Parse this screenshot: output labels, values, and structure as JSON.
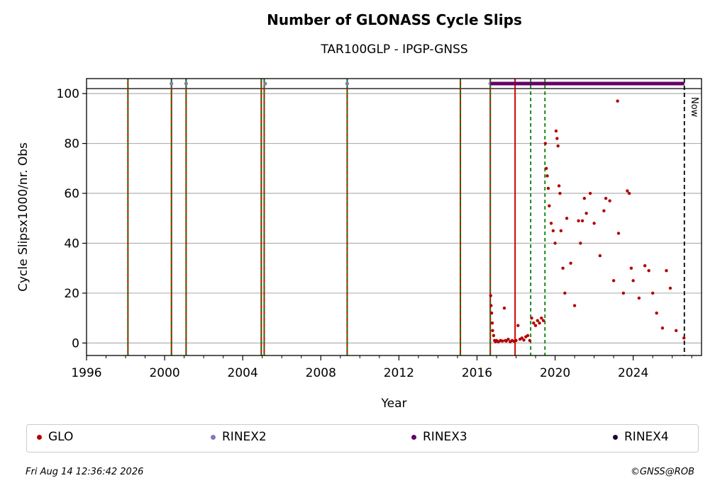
{
  "chart_data": {
    "type": "scatter",
    "title": "Number of GLONASS Cycle Slips",
    "subtitle": "TAR100GLP - IPGP-GNSS",
    "xlabel": "Year",
    "ylabel": "Cycle Slipsx1000/nr. Obs",
    "xlim": [
      1996.0,
      2027.5
    ],
    "ylim": [
      -5,
      106
    ],
    "xticks": [
      1996,
      2000,
      2004,
      2008,
      2012,
      2016,
      2020,
      2024
    ],
    "yticks": [
      0,
      20,
      40,
      60,
      80,
      100
    ],
    "grid": "horizontal",
    "now_label": "Now",
    "now_x": 2026.62,
    "reference_line_y": 102,
    "vertical_lines_red": [
      1998.12,
      2000.35,
      2001.1,
      2004.95,
      2005.1,
      2009.35,
      2015.15,
      2016.68,
      2017.95
    ],
    "vertical_lines_green_dashed": [
      1998.12,
      2000.35,
      2001.1,
      2004.95,
      2005.1,
      2009.35,
      2015.15,
      2016.68,
      2018.75,
      2019.48
    ],
    "series": [
      {
        "name": "GLO",
        "color": "#b30000",
        "points": [
          [
            2016.7,
            19
          ],
          [
            2016.72,
            15
          ],
          [
            2016.75,
            12
          ],
          [
            2016.78,
            8
          ],
          [
            2016.8,
            5
          ],
          [
            2016.85,
            3
          ],
          [
            2016.9,
            1
          ],
          [
            2016.95,
            0.5
          ],
          [
            2017.0,
            1
          ],
          [
            2017.1,
            0.5
          ],
          [
            2017.2,
            1
          ],
          [
            2017.3,
            0.8
          ],
          [
            2017.4,
            14
          ],
          [
            2017.45,
            1
          ],
          [
            2017.5,
            0.8
          ],
          [
            2017.6,
            1.5
          ],
          [
            2017.7,
            0.5
          ],
          [
            2017.8,
            1
          ],
          [
            2017.9,
            0.7
          ],
          [
            2018.0,
            1
          ],
          [
            2018.1,
            7
          ],
          [
            2018.2,
            1.5
          ],
          [
            2018.3,
            2
          ],
          [
            2018.4,
            1.2
          ],
          [
            2018.5,
            2.5
          ],
          [
            2018.6,
            3
          ],
          [
            2018.7,
            1
          ],
          [
            2018.8,
            10
          ],
          [
            2018.9,
            8
          ],
          [
            2019.0,
            7
          ],
          [
            2019.1,
            9
          ],
          [
            2019.2,
            8
          ],
          [
            2019.3,
            10
          ],
          [
            2019.4,
            9
          ],
          [
            2019.5,
            80
          ],
          [
            2019.55,
            70
          ],
          [
            2019.6,
            67
          ],
          [
            2019.65,
            62
          ],
          [
            2019.7,
            55
          ],
          [
            2019.8,
            48
          ],
          [
            2019.9,
            45
          ],
          [
            2020.0,
            40
          ],
          [
            2020.05,
            85
          ],
          [
            2020.1,
            82
          ],
          [
            2020.15,
            79
          ],
          [
            2020.2,
            63
          ],
          [
            2020.25,
            60
          ],
          [
            2020.3,
            45
          ],
          [
            2020.4,
            30
          ],
          [
            2020.5,
            20
          ],
          [
            2020.6,
            50
          ],
          [
            2020.8,
            32
          ],
          [
            2021.0,
            15
          ],
          [
            2021.2,
            49
          ],
          [
            2021.3,
            40
          ],
          [
            2021.4,
            49
          ],
          [
            2021.5,
            58
          ],
          [
            2021.6,
            52
          ],
          [
            2021.8,
            60
          ],
          [
            2022.0,
            48
          ],
          [
            2022.3,
            35
          ],
          [
            2022.5,
            53
          ],
          [
            2022.6,
            58
          ],
          [
            2022.8,
            57
          ],
          [
            2023.0,
            25
          ],
          [
            2023.2,
            97
          ],
          [
            2023.25,
            44
          ],
          [
            2023.5,
            20
          ],
          [
            2023.7,
            61
          ],
          [
            2023.8,
            60
          ],
          [
            2023.9,
            30
          ],
          [
            2024.0,
            25
          ],
          [
            2024.3,
            18
          ],
          [
            2024.6,
            31
          ],
          [
            2024.8,
            29
          ],
          [
            2025.0,
            20
          ],
          [
            2025.2,
            12
          ],
          [
            2025.5,
            6
          ],
          [
            2025.7,
            29
          ],
          [
            2025.9,
            22
          ],
          [
            2026.2,
            5
          ],
          [
            2026.6,
            2
          ]
        ]
      },
      {
        "name": "RINEX2",
        "color": "#7b7bbf",
        "points": [
          [
            2000.35,
            104
          ],
          [
            2001.1,
            104
          ],
          [
            2005.15,
            104
          ],
          [
            2009.35,
            104
          ],
          [
            2016.68,
            104
          ]
        ]
      },
      {
        "name": "RINEX3",
        "color": "#660066",
        "segment": [
          2016.68,
          2026.62
        ],
        "y": 104
      },
      {
        "name": "RINEX4",
        "color": "#1a0033",
        "points": []
      }
    ]
  },
  "legend": {
    "items": [
      {
        "label": "GLO",
        "color": "#b30000"
      },
      {
        "label": "RINEX2",
        "color": "#7b7bbf"
      },
      {
        "label": "RINEX3",
        "color": "#660066"
      },
      {
        "label": "RINEX4",
        "color": "#1a0033"
      }
    ]
  },
  "footer": {
    "timestamp": "Fri Aug 14 12:36:42 2026",
    "copyright": "©GNSS@ROB"
  }
}
